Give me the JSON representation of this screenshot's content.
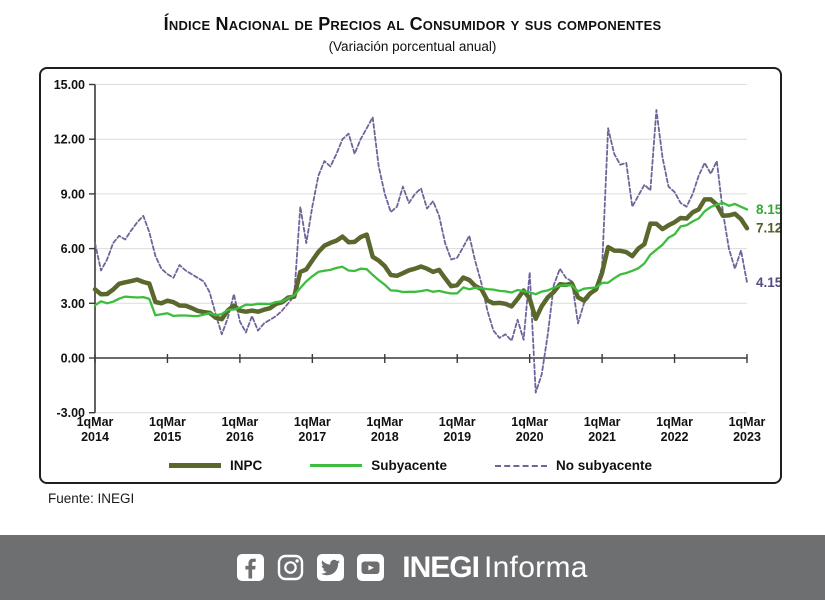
{
  "title": "Índice Nacional de Precios al Consumidor y sus componentes",
  "subtitle": "(Variación porcentual anual)",
  "source": "Fuente: INEGI",
  "footer": {
    "bg": "#6e6f71",
    "brand_bold": "INEGI",
    "brand_light": "Informa",
    "icons": [
      "facebook-icon",
      "instagram-icon",
      "twitter-icon",
      "youtube-icon"
    ]
  },
  "chart_data": {
    "type": "line",
    "title": "Índice Nacional de Precios al Consumidor y sus componentes",
    "subtitle": "(Variación porcentual anual)",
    "ylim": [
      -3,
      15
    ],
    "grid": true,
    "grid_color": "#dcdcdc",
    "axis_color": "#3a3a3a",
    "legend_position": "bottom",
    "y_ticks": [
      {
        "v": 15,
        "label": "15.00"
      },
      {
        "v": 12,
        "label": "12.00"
      },
      {
        "v": 9,
        "label": "9.00"
      },
      {
        "v": 6,
        "label": "6.00"
      },
      {
        "v": 3,
        "label": "3.00"
      },
      {
        "v": 0,
        "label": "0.00"
      },
      {
        "v": -3,
        "label": "-3.00"
      }
    ],
    "x_ticks": [
      {
        "index": 0,
        "line1": "1qMar",
        "line2": "2014"
      },
      {
        "index": 12,
        "line1": "1qMar",
        "line2": "2015"
      },
      {
        "index": 24,
        "line1": "1qMar",
        "line2": "2016"
      },
      {
        "index": 36,
        "line1": "1qMar",
        "line2": "2017"
      },
      {
        "index": 48,
        "line1": "1qMar",
        "line2": "2018"
      },
      {
        "index": 60,
        "line1": "1qMar",
        "line2": "2019"
      },
      {
        "index": 72,
        "line1": "1qMar",
        "line2": "2020"
      },
      {
        "index": 84,
        "line1": "1qMar",
        "line2": "2021"
      },
      {
        "index": 96,
        "line1": "1qMar",
        "line2": "2022"
      },
      {
        "index": 108,
        "line1": "1qMar",
        "line2": "2023"
      }
    ],
    "series": [
      {
        "name": "INPC",
        "color": "#5a682e",
        "label_color": "#4f5c28",
        "width": 4.5,
        "dash": null,
        "end_label": "7.12",
        "values": [
          3.76,
          3.5,
          3.51,
          3.75,
          4.07,
          4.15,
          4.22,
          4.3,
          4.17,
          4.08,
          3.07,
          3.0,
          3.14,
          3.06,
          2.88,
          2.87,
          2.74,
          2.59,
          2.52,
          2.48,
          2.21,
          2.13,
          2.61,
          2.87,
          2.6,
          2.54,
          2.6,
          2.54,
          2.65,
          2.73,
          2.97,
          3.06,
          3.31,
          3.36,
          4.72,
          4.86,
          5.35,
          5.82,
          6.16,
          6.31,
          6.44,
          6.66,
          6.35,
          6.37,
          6.63,
          6.77,
          5.55,
          5.34,
          5.04,
          4.55,
          4.51,
          4.65,
          4.81,
          4.9,
          5.02,
          4.9,
          4.72,
          4.83,
          4.37,
          3.94,
          4.0,
          4.41,
          4.28,
          3.95,
          3.78,
          3.16,
          3.0,
          3.02,
          2.97,
          2.83,
          3.24,
          3.7,
          3.25,
          2.15,
          2.84,
          3.33,
          3.62,
          4.05,
          4.01,
          4.09,
          3.33,
          3.15,
          3.54,
          3.76,
          4.67,
          6.08,
          5.89,
          5.88,
          5.81,
          5.59,
          6.0,
          6.24,
          7.37,
          7.36,
          7.07,
          7.28,
          7.45,
          7.68,
          7.65,
          7.99,
          8.15,
          8.7,
          8.7,
          8.41,
          7.8,
          7.82,
          7.91,
          7.62,
          7.12
        ]
      },
      {
        "name": "Subyacente",
        "color": "#3dbd3d",
        "label_color": "#35a832",
        "width": 2.3,
        "dash": null,
        "end_label": "8.15",
        "values": [
          2.89,
          3.11,
          3.0,
          3.09,
          3.25,
          3.37,
          3.34,
          3.32,
          3.34,
          3.24,
          2.34,
          2.4,
          2.45,
          2.31,
          2.33,
          2.33,
          2.31,
          2.3,
          2.38,
          2.47,
          2.34,
          2.41,
          2.64,
          2.66,
          2.76,
          2.93,
          2.91,
          2.97,
          2.97,
          2.96,
          3.07,
          3.1,
          3.29,
          3.44,
          3.84,
          4.2,
          4.48,
          4.72,
          4.78,
          4.83,
          4.94,
          5.0,
          4.8,
          4.77,
          4.9,
          4.87,
          4.56,
          4.27,
          4.02,
          3.71,
          3.69,
          3.62,
          3.63,
          3.63,
          3.67,
          3.73,
          3.63,
          3.68,
          3.6,
          3.54,
          3.55,
          3.87,
          3.77,
          3.85,
          3.82,
          3.78,
          3.75,
          3.68,
          3.65,
          3.59,
          3.73,
          3.66,
          3.6,
          3.5,
          3.64,
          3.71,
          3.85,
          3.97,
          3.99,
          3.98,
          3.66,
          3.8,
          3.84,
          3.87,
          4.12,
          4.13,
          4.37,
          4.58,
          4.66,
          4.78,
          4.92,
          5.19,
          5.67,
          5.94,
          6.21,
          6.59,
          6.78,
          7.22,
          7.28,
          7.49,
          7.65,
          8.05,
          8.28,
          8.42,
          8.51,
          8.35,
          8.45,
          8.29,
          8.15
        ]
      },
      {
        "name": "No subyacente",
        "color": "#6f6499",
        "label_color": "#564a82",
        "width": 1.8,
        "dash": "4 2.5",
        "end_label": "4.15",
        "values": [
          6.3,
          4.8,
          5.4,
          6.3,
          6.7,
          6.5,
          7.0,
          7.45,
          7.8,
          6.9,
          5.6,
          4.9,
          4.6,
          4.4,
          5.1,
          4.8,
          4.6,
          4.4,
          4.2,
          3.6,
          2.4,
          1.3,
          2.2,
          3.5,
          2.0,
          1.4,
          2.3,
          1.5,
          1.9,
          2.1,
          2.3,
          2.6,
          3.0,
          3.4,
          8.3,
          6.3,
          8.3,
          10.0,
          10.8,
          10.5,
          11.2,
          12.0,
          12.3,
          11.2,
          12.0,
          12.6,
          13.2,
          10.5,
          9.0,
          8.0,
          8.3,
          9.4,
          8.5,
          9.0,
          9.3,
          8.2,
          8.6,
          7.8,
          6.3,
          5.4,
          5.5,
          6.1,
          6.7,
          5.3,
          4.1,
          2.6,
          1.5,
          1.1,
          1.3,
          0.95,
          2.1,
          1.0,
          4.7,
          -1.9,
          -0.9,
          1.3,
          4.0,
          4.9,
          4.4,
          4.2,
          1.9,
          3.0,
          3.4,
          3.9,
          5.0,
          12.6,
          11.2,
          10.6,
          10.7,
          8.3,
          8.9,
          9.5,
          9.2,
          13.6,
          11.0,
          9.4,
          9.1,
          8.5,
          8.3,
          9.0,
          10.0,
          10.7,
          10.1,
          10.8,
          8.0,
          6.0,
          4.9,
          5.9,
          4.15
        ]
      }
    ]
  }
}
